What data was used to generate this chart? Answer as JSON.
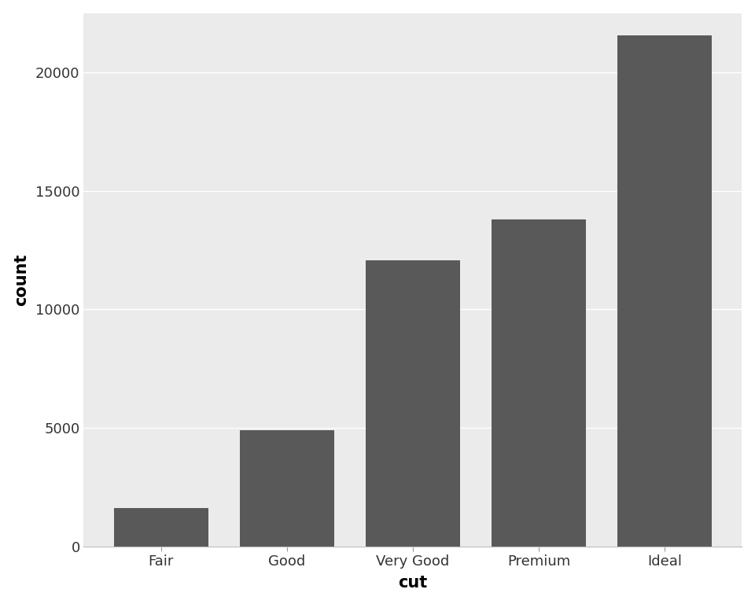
{
  "categories": [
    "Fair",
    "Good",
    "Very Good",
    "Premium",
    "Ideal"
  ],
  "values": [
    1610,
    4906,
    12082,
    13791,
    21551
  ],
  "bar_color": "#595959",
  "outer_background": "#FFFFFF",
  "panel_background": "#EBEBEB",
  "grid_color": "#FFFFFF",
  "xlabel": "cut",
  "ylabel": "count",
  "ylim": [
    0,
    22500
  ],
  "yticks": [
    0,
    5000,
    10000,
    15000,
    20000
  ],
  "xlabel_fontsize": 15,
  "ylabel_fontsize": 15,
  "tick_fontsize": 13,
  "bar_width": 0.75
}
